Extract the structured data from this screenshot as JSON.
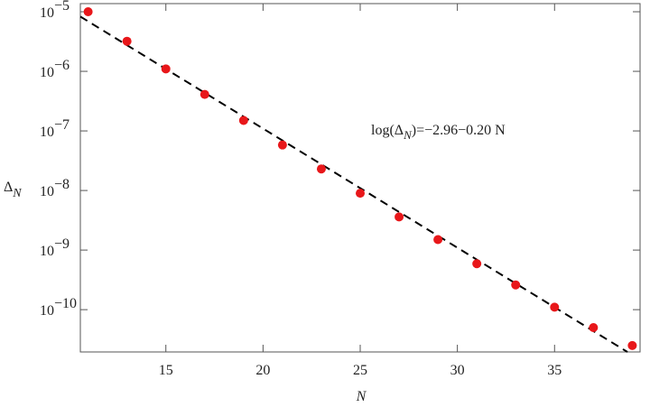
{
  "chart_data": {
    "type": "scatter",
    "xlabel": "N",
    "ylabel": "Δ",
    "ylabel_subscript": "N",
    "annotation": [
      "log(Δ",
      "N",
      ")=−2.96−0.20 N"
    ],
    "log_y": true,
    "xlim": [
      10.6,
      39.4
    ],
    "ylim": [
      1.95e-11,
      1.37e-05
    ],
    "xticks": [
      15,
      20,
      25,
      30,
      35
    ],
    "yticks": [
      {
        "value": 1e-05,
        "label": "10",
        "exponent": "−5"
      },
      {
        "value": 1e-06,
        "label": "10",
        "exponent": "−6"
      },
      {
        "value": 1e-07,
        "label": "10",
        "exponent": "−7"
      },
      {
        "value": 1e-08,
        "label": "10",
        "exponent": "−8"
      },
      {
        "value": 1e-09,
        "label": "10",
        "exponent": "−9"
      },
      {
        "value": 1e-10,
        "label": "10",
        "exponent": "−10"
      }
    ],
    "series": [
      {
        "type": "scatter",
        "color": "#e8171a",
        "x": [
          11,
          13,
          15,
          17,
          19,
          21,
          23,
          25,
          27,
          29,
          31,
          33,
          35,
          37,
          39
        ],
        "values": [
          1e-05,
          3.2e-06,
          1.1e-06,
          4.1e-07,
          1.5e-07,
          5.8e-08,
          2.3e-08,
          9e-09,
          3.6e-09,
          1.5e-09,
          5.9e-10,
          2.6e-10,
          1.1e-10,
          5e-11,
          2.5e-11
        ]
      },
      {
        "type": "line",
        "color": "#000000",
        "dashed": true,
        "x": [
          10.6,
          38.75
        ],
        "values": [
          8.3e-06,
          1.95e-11
        ]
      }
    ]
  }
}
